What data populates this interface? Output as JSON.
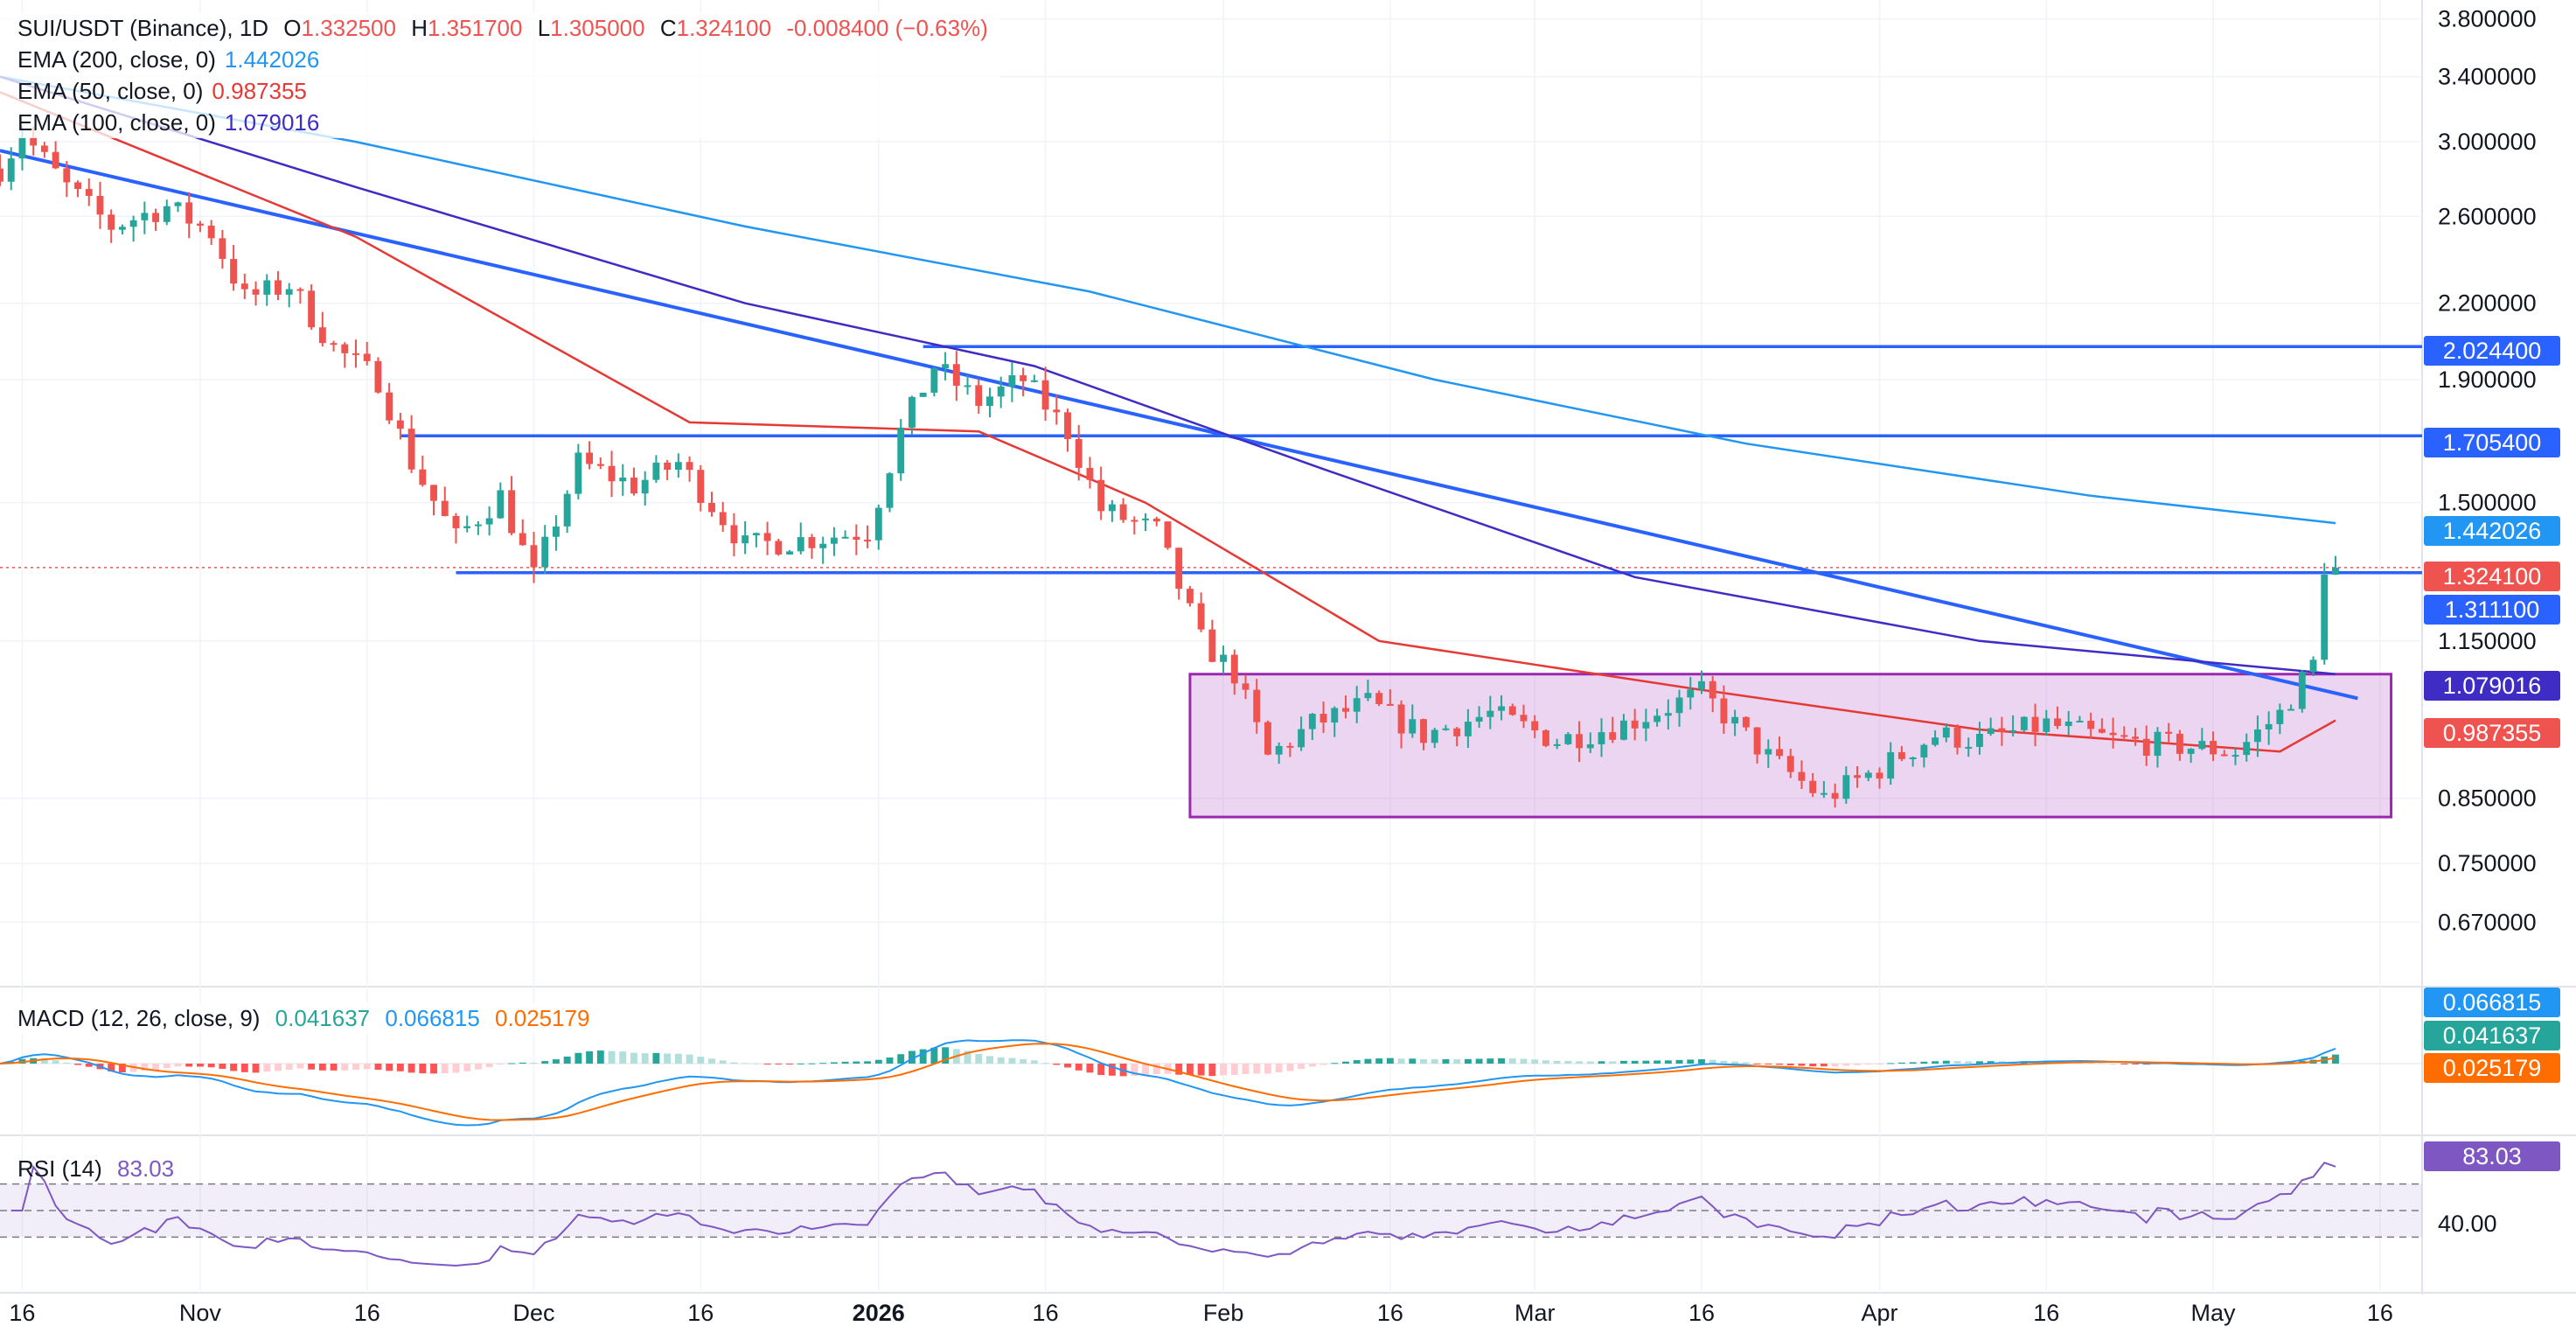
{
  "legend": {
    "title": "SUI/USDT (Binance), 1D",
    "o_label": "O",
    "o": "1.332500",
    "h_label": "H",
    "h": "1.351700",
    "l_label": "L",
    "l": "1.305000",
    "c_label": "C",
    "c": "1.324100",
    "change": "-0.008400 (−0.63%)",
    "ema200_label": "EMA (200, close, 0)",
    "ema200_value": "1.442026",
    "ema50_label": "EMA (50, close, 0)",
    "ema50_value": "0.987355",
    "ema100_label": "EMA (100, close, 0)",
    "ema100_value": "1.079016"
  },
  "macd_legend": {
    "label": "MACD (12, 26, close, 9)",
    "hist": "0.041637",
    "macd": "0.066815",
    "signal": "0.025179"
  },
  "rsi_legend": {
    "label": "RSI (14)",
    "value": "83.03"
  },
  "colors": {
    "up": "#26a69a",
    "down": "#ef5350",
    "ema200": "#2196f3",
    "ema50": "#e53935",
    "ema100": "#3f2cc4",
    "level": "#2962ff",
    "range": "#9c27b0",
    "rsi": "#7e57c2",
    "signal": "#ff6d00"
  },
  "chart_data": {
    "type": "candlestick",
    "symbol": "SUI/USDT (Binance), 1D",
    "price_axis_ticks": [
      "3.800000",
      "3.400000",
      "3.000000",
      "2.600000",
      "2.200000",
      "1.900000",
      "1.500000",
      "1.150000",
      "0.850000",
      "0.750000",
      "0.670000"
    ],
    "time_axis_ticks": [
      "16",
      "Nov",
      "16",
      "Dec",
      "16",
      "2026",
      "16",
      "Feb",
      "16",
      "Mar",
      "16",
      "Apr",
      "16",
      "May",
      "16"
    ],
    "ylim": [
      0.6,
      3.9
    ],
    "scale": "log",
    "x_dates": [
      "2025-10-14",
      "2026-05-19"
    ],
    "close_path": [
      [
        "2025-10-14",
        2.85
      ],
      [
        "2025-10-16",
        3.05
      ],
      [
        "2025-10-20",
        2.75
      ],
      [
        "2025-10-24",
        2.55
      ],
      [
        "2025-10-29",
        2.65
      ],
      [
        "2025-11-02",
        2.52
      ],
      [
        "2025-11-05",
        2.22
      ],
      [
        "2025-11-09",
        2.28
      ],
      [
        "2025-11-13",
        2.02
      ],
      [
        "2025-11-17",
        1.9
      ],
      [
        "2025-11-20",
        1.62
      ],
      [
        "2025-11-24",
        1.4
      ],
      [
        "2025-11-28",
        1.52
      ],
      [
        "2025-12-01",
        1.3
      ],
      [
        "2025-12-05",
        1.62
      ],
      [
        "2025-12-10",
        1.55
      ],
      [
        "2025-12-14",
        1.62
      ],
      [
        "2025-12-20",
        1.38
      ],
      [
        "2025-12-26",
        1.4
      ],
      [
        "2025-12-31",
        1.42
      ],
      [
        "2026-01-03",
        1.72
      ],
      [
        "2026-01-06",
        1.95
      ],
      [
        "2026-01-10",
        1.82
      ],
      [
        "2026-01-14",
        1.9
      ],
      [
        "2026-01-18",
        1.72
      ],
      [
        "2026-01-21",
        1.48
      ],
      [
        "2026-01-26",
        1.42
      ],
      [
        "2026-01-30",
        1.15
      ],
      [
        "2026-02-02",
        1.08
      ],
      [
        "2026-02-05",
        0.92
      ],
      [
        "2026-02-09",
        0.98
      ],
      [
        "2026-02-14",
        1.02
      ],
      [
        "2026-02-19",
        0.96
      ],
      [
        "2026-02-25",
        1.0
      ],
      [
        "2026-03-03",
        0.95
      ],
      [
        "2026-03-09",
        0.98
      ],
      [
        "2026-03-16",
        1.04
      ],
      [
        "2026-03-22",
        0.92
      ],
      [
        "2026-03-27",
        0.85
      ],
      [
        "2026-04-01",
        0.9
      ],
      [
        "2026-04-06",
        0.96
      ],
      [
        "2026-04-10",
        0.95
      ],
      [
        "2026-04-16",
        0.98
      ],
      [
        "2026-04-22",
        0.95
      ],
      [
        "2026-04-28",
        0.94
      ],
      [
        "2026-05-03",
        0.93
      ],
      [
        "2026-05-07",
        1.0
      ],
      [
        "2026-05-10",
        1.1
      ],
      [
        "2026-05-11",
        1.33
      ],
      [
        "2026-05-12",
        1.324
      ]
    ],
    "ema200": [
      [
        "2025-10-14",
        3.4
      ],
      [
        "2025-11-15",
        3.0
      ],
      [
        "2025-12-20",
        2.55
      ],
      [
        "2026-01-20",
        2.25
      ],
      [
        "2026-02-20",
        1.9
      ],
      [
        "2026-03-20",
        1.68
      ],
      [
        "2026-04-20",
        1.52
      ],
      [
        "2026-05-12",
        1.442026
      ]
    ],
    "ema100": [
      [
        "2025-10-14",
        3.4
      ],
      [
        "2025-11-15",
        2.75
      ],
      [
        "2025-12-20",
        2.2
      ],
      [
        "2026-01-15",
        1.95
      ],
      [
        "2026-02-10",
        1.6
      ],
      [
        "2026-03-10",
        1.3
      ],
      [
        "2026-04-10",
        1.15
      ],
      [
        "2026-05-12",
        1.079016
      ]
    ],
    "ema50": [
      [
        "2025-10-14",
        3.3
      ],
      [
        "2025-11-15",
        2.5
      ],
      [
        "2025-12-15",
        1.75
      ],
      [
        "2026-01-10",
        1.72
      ],
      [
        "2026-01-25",
        1.5
      ],
      [
        "2026-02-15",
        1.15
      ],
      [
        "2026-03-15",
        1.05
      ],
      [
        "2026-04-10",
        0.97
      ],
      [
        "2026-05-07",
        0.93
      ],
      [
        "2026-05-12",
        0.987355
      ]
    ],
    "levels": [
      {
        "value": 2.0244,
        "label": "2.024400",
        "from": "2026-01-05"
      },
      {
        "value": 1.7054,
        "label": "1.705400",
        "from": "2025-11-19"
      },
      {
        "value": 1.3111,
        "label": "1.311100",
        "from": "2025-11-24"
      }
    ],
    "trendline": [
      [
        "2025-10-14",
        2.95
      ],
      [
        "2026-05-14",
        1.03
      ]
    ],
    "range_box": {
      "from": "2026-01-29",
      "to": "2026-05-17",
      "top": 1.079,
      "bottom": 0.82
    },
    "last_price": 1.3241,
    "price_badges": [
      "2.024400",
      "1.705400",
      "1.442026",
      "1.324100",
      "1.311100",
      "1.079016",
      "0.987355"
    ],
    "macd": {
      "histogram": "0.041637",
      "macd": "0.066815",
      "signal": "0.025179",
      "badges": [
        "0.066815",
        "0.041637",
        "0.025179"
      ]
    },
    "rsi": {
      "value": "83.03",
      "axis_tick": "40.00",
      "upper": 70,
      "lower": 30
    }
  }
}
